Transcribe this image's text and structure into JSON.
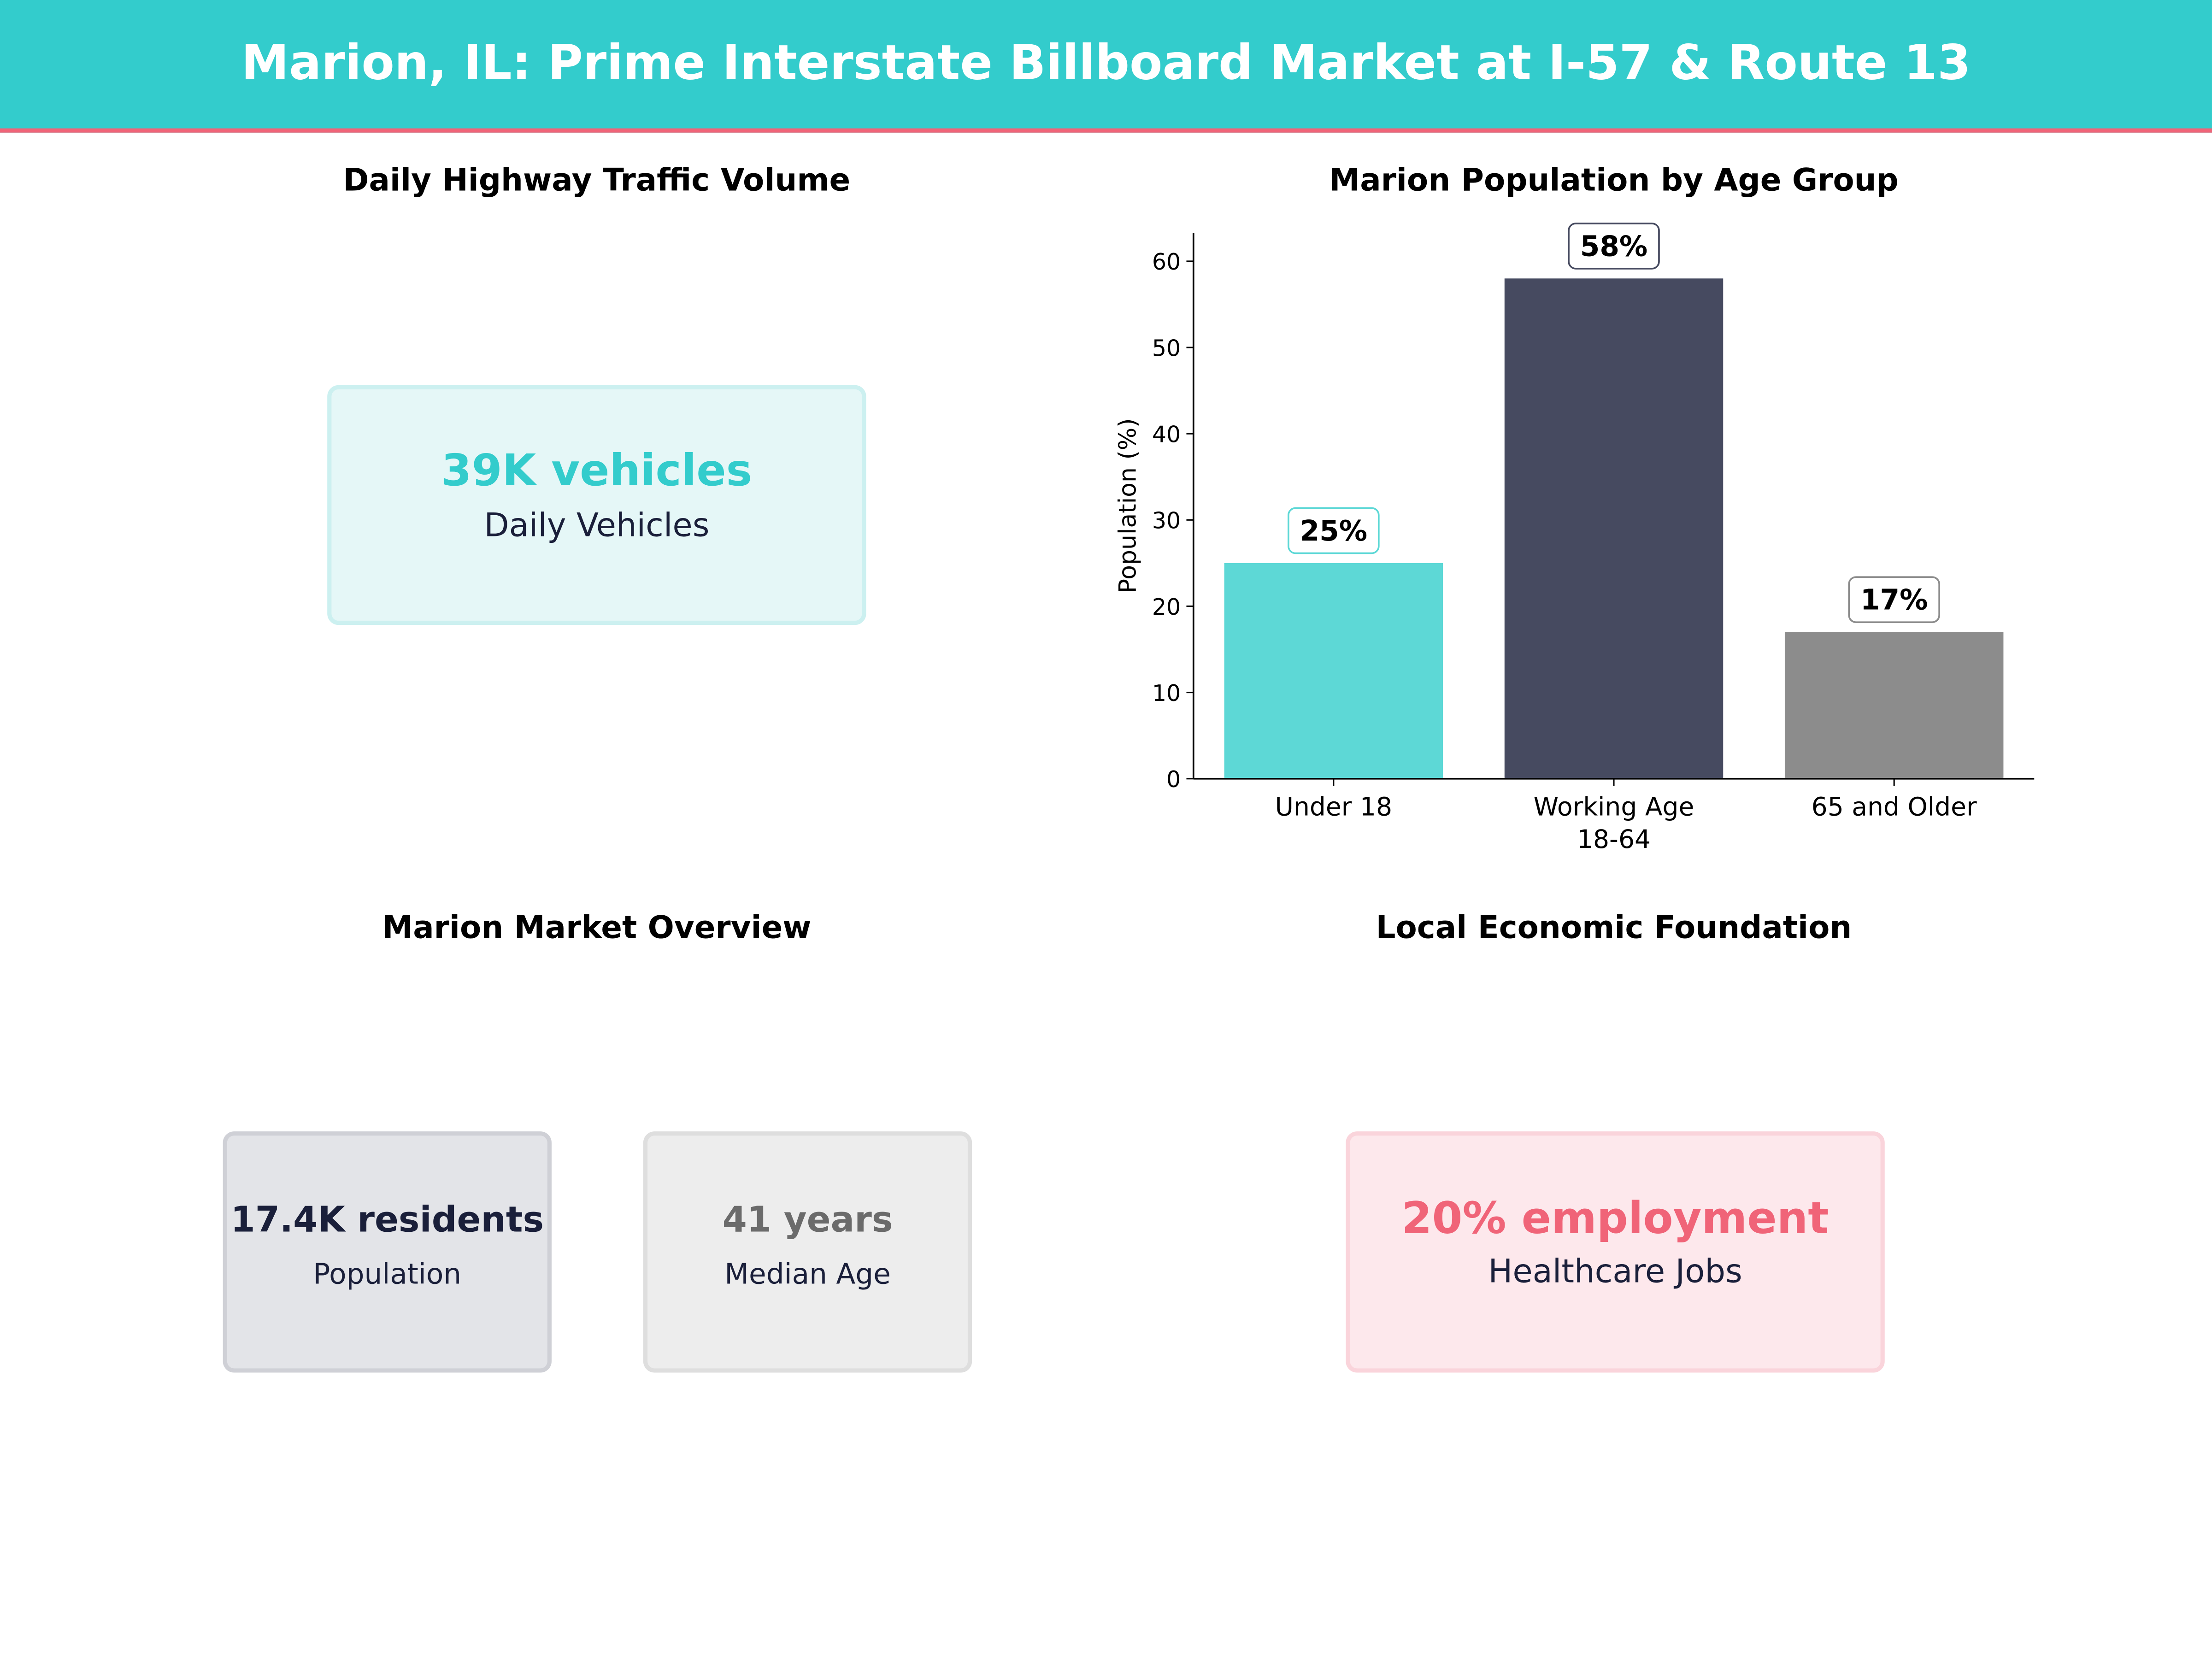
{
  "header": {
    "title": "Marion, IL: Prime Interstate Billboard Market at I-57 & Route 13"
  },
  "traffic": {
    "title": "Daily Highway Traffic Volume",
    "value": "39K vehicles",
    "label": "Daily Vehicles",
    "color": "#33cccc"
  },
  "overview": {
    "title": "Marion Market Overview",
    "cards": [
      {
        "value": "17.4K residents",
        "label": "Population",
        "color": "#1a1f3a"
      },
      {
        "value": "41 years",
        "label": "Median Age",
        "color": "#6b6b6b"
      }
    ]
  },
  "economy": {
    "title": "Local Economic Foundation",
    "value": "20% employment",
    "label": "Healthcare Jobs",
    "color": "#f06478"
  },
  "chart_data": {
    "type": "bar",
    "title": "Marion Population by Age Group",
    "xlabel": "",
    "ylabel": "Population (%)",
    "categories": [
      "Under 18",
      "Working Age\n18-64",
      "65 and Older"
    ],
    "values": [
      25,
      58,
      17
    ],
    "data_labels": [
      "25%",
      "58%",
      "17%"
    ],
    "colors": [
      "#5dd8d6",
      "#464a60",
      "#8c8c8c"
    ],
    "label_border_colors": [
      "#5dd8d6",
      "#464a60",
      "#8c8c8c"
    ],
    "yticks": [
      0,
      10,
      20,
      30,
      40,
      50,
      60
    ],
    "ylim": [
      0,
      63.3
    ],
    "grid": false
  }
}
